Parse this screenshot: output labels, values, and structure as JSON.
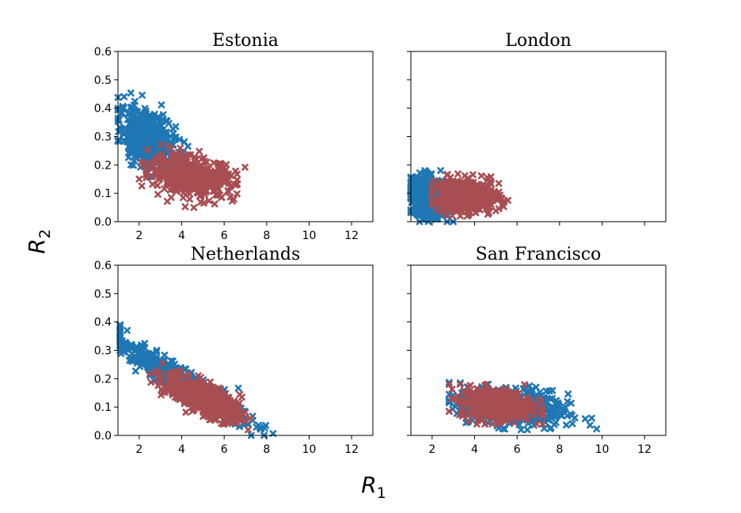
{
  "figure": {
    "xlabel_main": "R",
    "xlabel_sub": "1",
    "ylabel_main": "R",
    "ylabel_sub": "2"
  },
  "colors": {
    "blue": "#1f77b4",
    "red": "#a84e52"
  },
  "chart_data": [
    {
      "type": "scatter",
      "title": "Estonia",
      "xlim": [
        1,
        13
      ],
      "ylim": [
        0,
        0.6
      ],
      "xticks": [
        2,
        4,
        6,
        8,
        10,
        12
      ],
      "yticks": [
        0.0,
        0.1,
        0.2,
        0.3,
        0.4,
        0.5,
        0.6
      ],
      "grid": false,
      "series": [
        {
          "color": "blue",
          "center": [
            2.4,
            0.29
          ],
          "spread": [
            0.65,
            0.055
          ],
          "corr": -0.45,
          "count": 520,
          "xrange": [
            1.0,
            8.3
          ],
          "yrange": [
            0.13,
            0.5
          ]
        },
        {
          "color": "red",
          "center": [
            4.5,
            0.16
          ],
          "spread": [
            1.0,
            0.035
          ],
          "corr": -0.3,
          "count": 480,
          "xrange": [
            2.0,
            7.7
          ],
          "yrange": [
            0.05,
            0.29
          ]
        }
      ]
    },
    {
      "type": "scatter",
      "title": "London",
      "xlim": [
        1,
        13
      ],
      "ylim": [
        0,
        0.6
      ],
      "xticks": [
        2,
        4,
        6,
        8,
        10,
        12
      ],
      "yticks": [
        0.0,
        0.1,
        0.2,
        0.3,
        0.4,
        0.5,
        0.6
      ],
      "grid": false,
      "series": [
        {
          "color": "blue",
          "center": [
            1.8,
            0.085
          ],
          "spread": [
            0.5,
            0.035
          ],
          "corr": -0.2,
          "count": 500,
          "xrange": [
            1.0,
            5.5
          ],
          "yrange": [
            0.0,
            0.18
          ]
        },
        {
          "color": "red",
          "center": [
            3.6,
            0.09
          ],
          "spread": [
            0.8,
            0.03
          ],
          "corr": -0.1,
          "count": 420,
          "xrange": [
            2.0,
            6.3
          ],
          "yrange": [
            0.02,
            0.19
          ]
        }
      ]
    },
    {
      "type": "scatter",
      "title": "Netherlands",
      "xlim": [
        1,
        13
      ],
      "ylim": [
        0,
        0.6
      ],
      "xticks": [
        2,
        4,
        6,
        8,
        10,
        12
      ],
      "yticks": [
        0.0,
        0.1,
        0.2,
        0.3,
        0.4,
        0.5,
        0.6
      ],
      "grid": false,
      "series": [
        {
          "color": "blue",
          "center": [
            3.8,
            0.2
          ],
          "spread": [
            1.5,
            0.07
          ],
          "corr": -0.95,
          "count": 650,
          "xrange": [
            1.1,
            8.3
          ],
          "yrange": [
            0.0,
            0.39
          ]
        },
        {
          "color": "red",
          "center": [
            5.0,
            0.13
          ],
          "spread": [
            0.9,
            0.04
          ],
          "corr": -0.7,
          "count": 450,
          "xrange": [
            2.5,
            7.7
          ],
          "yrange": [
            0.02,
            0.38
          ]
        }
      ]
    },
    {
      "type": "scatter",
      "title": "San Francisco",
      "xlim": [
        1,
        13
      ],
      "ylim": [
        0,
        0.6
      ],
      "xticks": [
        2,
        4,
        6,
        8,
        10,
        12
      ],
      "yticks": [
        0.0,
        0.1,
        0.2,
        0.3,
        0.4,
        0.5,
        0.6
      ],
      "grid": false,
      "series": [
        {
          "color": "blue",
          "center": [
            5.8,
            0.1
          ],
          "spread": [
            1.3,
            0.035
          ],
          "corr": -0.3,
          "count": 500,
          "xrange": [
            2.8,
            10.3
          ],
          "yrange": [
            0.02,
            0.21
          ]
        },
        {
          "color": "red",
          "center": [
            5.0,
            0.11
          ],
          "spread": [
            0.85,
            0.028
          ],
          "corr": -0.15,
          "count": 430,
          "xrange": [
            2.8,
            7.2
          ],
          "yrange": [
            0.04,
            0.18
          ]
        }
      ]
    }
  ]
}
